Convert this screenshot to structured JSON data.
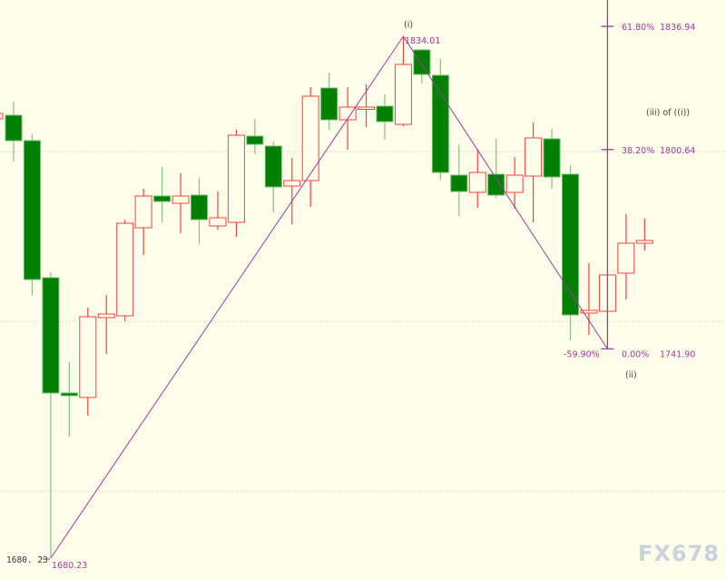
{
  "chart_data": {
    "type": "candlestick",
    "title": "",
    "colors": {
      "up": "#ff4040",
      "down": "#008000",
      "fib": "#9b3c9b",
      "background": "#fefeea",
      "grid": "#d8d8c8"
    },
    "grid_levels": [
      1800,
      1750,
      1700
    ],
    "ylim": [
      1677,
      1845
    ],
    "candles": [
      {
        "o": 1809.67,
        "h": 1811.28,
        "l": 1809.67,
        "c": 1811.28
      },
      {
        "o": 1810.74,
        "h": 1814.76,
        "l": 1797.1,
        "c": 1803.26
      },
      {
        "o": 1803.26,
        "h": 1805.13,
        "l": 1757.79,
        "c": 1762.34
      },
      {
        "o": 1762.87,
        "h": 1764.47,
        "l": 1680.23,
        "c": 1728.9
      },
      {
        "o": 1728.9,
        "h": 1738.0,
        "l": 1716.07,
        "c": 1728.1
      },
      {
        "o": 1727.57,
        "h": 1754.04,
        "l": 1722.22,
        "c": 1751.37
      },
      {
        "o": 1751.1,
        "h": 1757.79,
        "l": 1740.4,
        "c": 1752.17
      },
      {
        "o": 1751.64,
        "h": 1779.99,
        "l": 1750.03,
        "c": 1778.92
      },
      {
        "o": 1777.58,
        "h": 1789.08,
        "l": 1769.56,
        "c": 1786.94
      },
      {
        "o": 1786.94,
        "h": 1795.5,
        "l": 1779.18,
        "c": 1785.34
      },
      {
        "o": 1784.8,
        "h": 1793.63,
        "l": 1775.98,
        "c": 1786.94
      },
      {
        "o": 1787.21,
        "h": 1792.29,
        "l": 1772.77,
        "c": 1779.99
      },
      {
        "o": 1778.12,
        "h": 1788.28,
        "l": 1777.05,
        "c": 1780.52
      },
      {
        "o": 1779.18,
        "h": 1806.46,
        "l": 1774.91,
        "c": 1804.86
      },
      {
        "o": 1804.59,
        "h": 1809.67,
        "l": 1799.24,
        "c": 1802.19
      },
      {
        "o": 1801.65,
        "h": 1802.99,
        "l": 1782.13,
        "c": 1789.62
      },
      {
        "o": 1789.88,
        "h": 1798.17,
        "l": 1778.65,
        "c": 1791.49
      },
      {
        "o": 1791.49,
        "h": 1819.03,
        "l": 1783.73,
        "c": 1816.36
      },
      {
        "o": 1818.77,
        "h": 1823.31,
        "l": 1806.46,
        "c": 1809.41
      },
      {
        "o": 1809.41,
        "h": 1819.03,
        "l": 1800.58,
        "c": 1813.15
      },
      {
        "o": 1812.62,
        "h": 1819.84,
        "l": 1807.27,
        "c": 1813.15
      },
      {
        "o": 1813.42,
        "h": 1816.9,
        "l": 1803.52,
        "c": 1808.87
      },
      {
        "o": 1808.07,
        "h": 1834.01,
        "l": 1807.53,
        "c": 1825.72
      },
      {
        "o": 1830.0,
        "h": 1830.27,
        "l": 1820.1,
        "c": 1822.78
      },
      {
        "o": 1822.51,
        "h": 1827.33,
        "l": 1791.75,
        "c": 1793.89
      },
      {
        "o": 1793.09,
        "h": 1802.19,
        "l": 1781.06,
        "c": 1788.28
      },
      {
        "o": 1788.01,
        "h": 1800.85,
        "l": 1783.46,
        "c": 1793.89
      },
      {
        "o": 1793.36,
        "h": 1803.79,
        "l": 1786.41,
        "c": 1787.21
      },
      {
        "o": 1788.01,
        "h": 1798.44,
        "l": 1783.2,
        "c": 1793.09
      },
      {
        "o": 1792.82,
        "h": 1808.6,
        "l": 1779.18,
        "c": 1804.06
      },
      {
        "o": 1803.79,
        "h": 1806.73,
        "l": 1789.08,
        "c": 1792.56
      },
      {
        "o": 1793.36,
        "h": 1796.03,
        "l": 1744.42,
        "c": 1751.9
      },
      {
        "o": 1752.44,
        "h": 1767.15,
        "l": 1746.02,
        "c": 1753.24
      },
      {
        "o": 1752.97,
        "h": 1763.67,
        "l": 1752.97,
        "c": 1763.67
      },
      {
        "o": 1764.21,
        "h": 1781.59,
        "l": 1756.45,
        "c": 1773.03
      },
      {
        "o": 1773.03,
        "h": 1780.26,
        "l": 1770.89,
        "c": 1773.84
      }
    ],
    "zigzag": [
      {
        "candle": 3,
        "price": 1680.23,
        "label": "1680.23"
      },
      {
        "candle": 22,
        "price": 1834.01,
        "label": "1834.01"
      },
      {
        "candle": 33,
        "price": 1741.9
      }
    ],
    "fib_levels": [
      {
        "pct": "61.80%",
        "price": 1836.94,
        "value": "1836.94"
      },
      {
        "pct": "38.20%",
        "price": 1800.64,
        "value": "1800.64"
      },
      {
        "pct": "0.00%",
        "price": 1741.9,
        "value": "1741.90"
      }
    ],
    "fib_extra_label": "-59.90%",
    "wave_labels": {
      "peak": "(i)",
      "trough": "(ii)",
      "current": "(iii) of ((i))"
    },
    "low_marker": "1680. 23"
  },
  "watermark": "FX678"
}
